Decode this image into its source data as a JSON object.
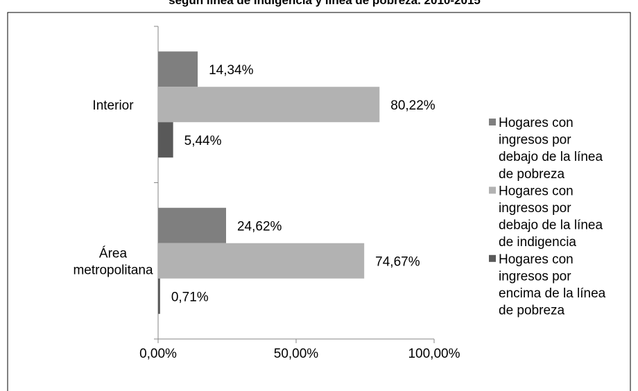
{
  "chart_data": {
    "type": "bar",
    "orientation": "horizontal",
    "title": "según línea de indigencia y línea de pobreza. 2010-2015",
    "categories": [
      "Interior",
      "Área metropolitana"
    ],
    "category_lines": [
      [
        "Interior"
      ],
      [
        "Área",
        "metropolitana"
      ]
    ],
    "series": [
      {
        "name": "Hogares con ingresos por debajo de la línea de pobreza",
        "legend_lines": [
          "Hogares con",
          "ingresos por",
          "debajo de la línea",
          "de pobreza"
        ],
        "color": "#7f7f7f",
        "values": [
          14.34,
          24.62
        ],
        "labels": [
          "14,34%",
          "24,62%"
        ]
      },
      {
        "name": "Hogares con ingresos por debajo de la línea de indigencia",
        "legend_lines": [
          "Hogares con",
          "ingresos por",
          "debajo de la línea",
          "de indigencia"
        ],
        "color": "#b2b2b2",
        "values": [
          80.22,
          74.67
        ],
        "labels": [
          "80,22%",
          "74,67%"
        ]
      },
      {
        "name": "Hogares con ingresos por encima de la línea de pobreza",
        "legend_lines": [
          "Hogares con",
          "ingresos por",
          "encima de la línea",
          "de pobreza"
        ],
        "color": "#595959",
        "values": [
          5.44,
          0.71
        ],
        "labels": [
          "5,44%",
          "0,71%"
        ]
      }
    ],
    "x_ticks": [
      "0,00%",
      "50,00%",
      "100,00%"
    ],
    "xlim": [
      0,
      100
    ],
    "grid": false,
    "legend": "right"
  }
}
